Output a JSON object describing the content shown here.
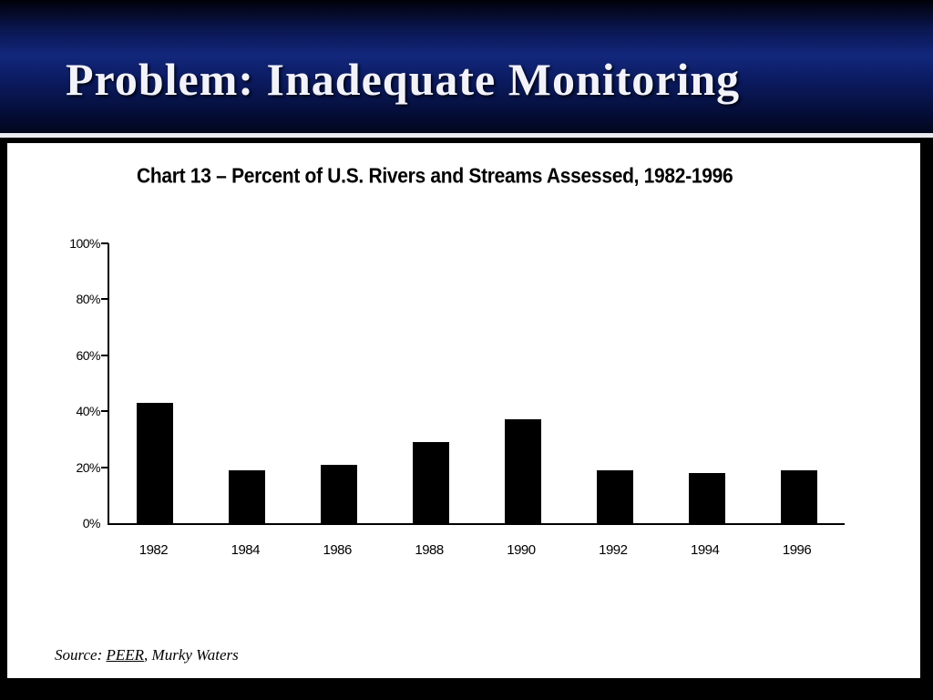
{
  "slide": {
    "title": "Problem: Inadequate Monitoring",
    "source": {
      "prefix": "Source: ",
      "org": "PEER",
      "rest": ", Murky Waters"
    }
  },
  "chart_data": {
    "type": "bar",
    "title": "Chart 13 – Percent of U.S. Rivers and Streams Assessed, 1982-1996",
    "categories": [
      "1982",
      "1984",
      "1986",
      "1988",
      "1990",
      "1992",
      "1994",
      "1996"
    ],
    "values": [
      43,
      19,
      21,
      29,
      37,
      19,
      18,
      19
    ],
    "xlabel": "",
    "ylabel": "",
    "ylim": [
      0,
      100
    ],
    "yticks": [
      0,
      20,
      40,
      60,
      80,
      100
    ],
    "ytick_labels": [
      "0%",
      "20%",
      "40%",
      "60%",
      "80%",
      "100%"
    ],
    "bar_color": "#000000",
    "grid": false,
    "legend": false
  }
}
